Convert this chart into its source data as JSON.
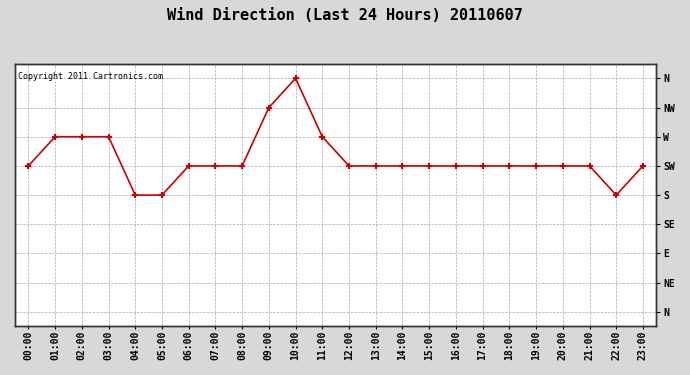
{
  "title": "Wind Direction (Last 24 Hours) 20110607",
  "copyright_text": "Copyright 2011 Cartronics.com",
  "x_labels": [
    "00:00",
    "01:00",
    "02:00",
    "03:00",
    "04:00",
    "05:00",
    "06:00",
    "07:00",
    "08:00",
    "09:00",
    "10:00",
    "11:00",
    "12:00",
    "13:00",
    "14:00",
    "15:00",
    "16:00",
    "17:00",
    "18:00",
    "19:00",
    "20:00",
    "21:00",
    "22:00",
    "23:00"
  ],
  "y_labels_right": [
    "N",
    "NW",
    "W",
    "SW",
    "S",
    "SE",
    "E",
    "NE",
    "N"
  ],
  "y_tick_positions": [
    8,
    7,
    6,
    5,
    4,
    3,
    2,
    1,
    0
  ],
  "data_points": [
    5,
    6,
    6,
    6,
    4,
    4,
    5,
    5,
    5,
    7,
    8,
    6,
    5,
    5,
    5,
    5,
    5,
    5,
    5,
    5,
    5,
    5,
    4,
    5
  ],
  "line_color": "#cc0000",
  "marker": "+",
  "marker_size": 5,
  "marker_linewidth": 1.5,
  "background_color": "#d8d8d8",
  "plot_bg_color": "#ffffff",
  "grid_color": "#aaaaaa",
  "title_fontsize": 11,
  "tick_fontsize": 7,
  "copyright_fontsize": 6,
  "figsize": [
    6.9,
    3.75
  ],
  "dpi": 100,
  "ylim": [
    -0.5,
    8.5
  ],
  "xlim": [
    -0.5,
    23.5
  ]
}
